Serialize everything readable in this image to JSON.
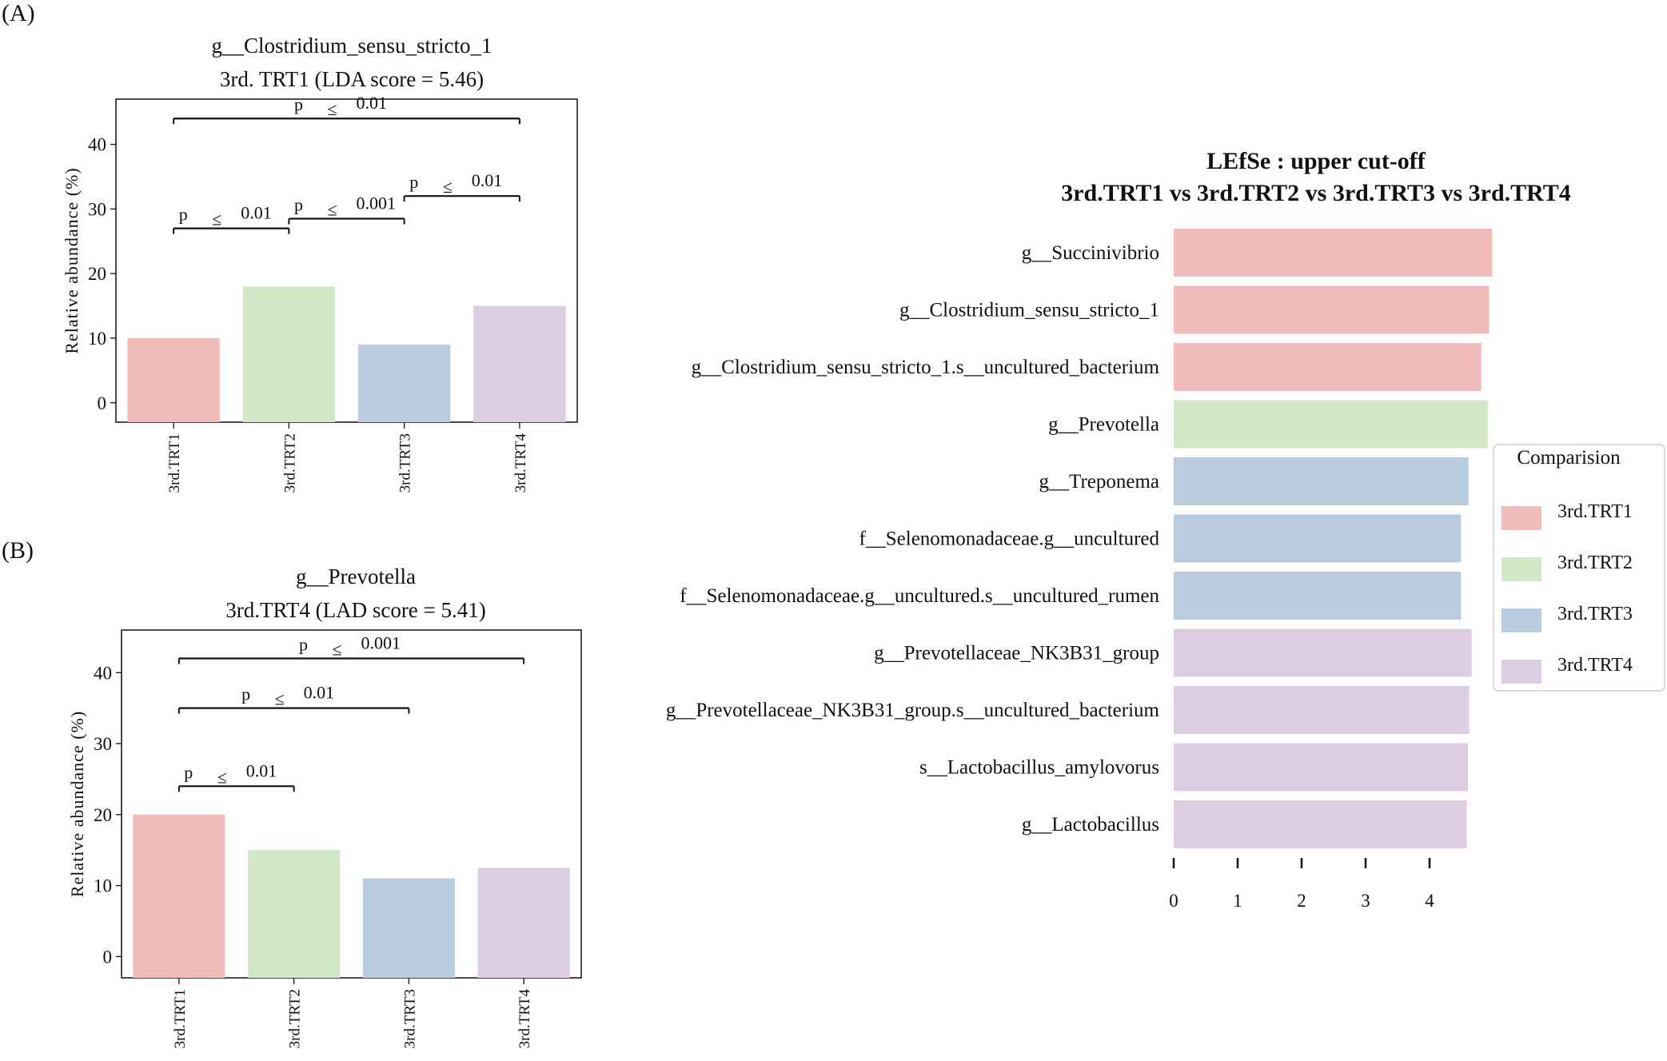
{
  "colors": {
    "TRT1": "#f2bcba",
    "TRT2": "#d0e7c8",
    "TRT3": "#b9cbdf",
    "TRT4": "#dccde2",
    "ink": "#111111"
  },
  "chart_data": [
    {
      "id": "A",
      "type": "bar",
      "panel_label": "(A)",
      "title": "g__Clostridium_sensu_stricto_1",
      "subtitle": "3rd. TRT1 (LDA score = 5.46)",
      "ylabel": "Relative  abundance  (%)",
      "xlabel": "",
      "ylim": [
        -3,
        47
      ],
      "yticks": [
        0,
        10,
        20,
        30,
        40
      ],
      "grid": false,
      "categories": [
        "3rd.TRT1",
        "3rd.TRT2",
        "3rd.TRT3",
        "3rd.TRT4"
      ],
      "values": [
        10,
        18,
        9,
        15
      ],
      "bar_colors": [
        "#f2bcba",
        "#d0e7c8",
        "#b9cbdf",
        "#dccde2"
      ],
      "significance": [
        {
          "from": 0,
          "to": 3,
          "y": 44,
          "p": "p",
          "op": "≤",
          "value": "0.01"
        },
        {
          "from": 0,
          "to": 1,
          "y": 27,
          "p": "p",
          "op": "≤",
          "value": "0.01"
        },
        {
          "from": 1,
          "to": 2,
          "y": 28.5,
          "p": "p",
          "op": "≤",
          "value": "0.001"
        },
        {
          "from": 2,
          "to": 3,
          "y": 32,
          "p": "p",
          "op": "≤",
          "value": "0.01"
        }
      ]
    },
    {
      "id": "B",
      "type": "bar",
      "panel_label": "(B)",
      "title": "g__Prevotella",
      "subtitle": "3rd.TRT4 (LAD score = 5.41)",
      "ylabel": "Relative  abundance  (%)",
      "xlabel": "",
      "ylim": [
        -3,
        46
      ],
      "yticks": [
        0,
        10,
        20,
        30,
        40
      ],
      "grid": false,
      "categories": [
        "3rd.TRT1",
        "3rd.TRT2",
        "3rd.TRT3",
        "3rd.TRT4"
      ],
      "values": [
        20,
        15,
        11,
        12.5
      ],
      "bar_colors": [
        "#f2bcba",
        "#d0e7c8",
        "#b9cbdf",
        "#dccde2"
      ],
      "significance": [
        {
          "from": 0,
          "to": 3,
          "y": 42,
          "p": "p",
          "op": "≤",
          "value": "0.001"
        },
        {
          "from": 0,
          "to": 2,
          "y": 35,
          "p": "p",
          "op": "≤",
          "value": "0.01"
        },
        {
          "from": 0,
          "to": 1,
          "y": 24,
          "p": "p",
          "op": "≤",
          "value": "0.01"
        }
      ]
    },
    {
      "id": "C",
      "type": "bar",
      "orientation": "horizontal",
      "title": "LEfSe : upper  cut-off",
      "subtitle": "3rd.TRT1  vs 3rd.TRT2  vs 3rd.TRT3  vs 3rd.TRT4",
      "xlabel": "",
      "ylabel": "",
      "xlim": [
        0,
        5
      ],
      "xticks": [
        0,
        1,
        2,
        3,
        4
      ],
      "grid": false,
      "legend": {
        "title": "Comparision",
        "position": "right",
        "entries": [
          {
            "label": "3rd.TRT1",
            "color": "#f2bcba"
          },
          {
            "label": "3rd.TRT2",
            "color": "#d0e7c8"
          },
          {
            "label": "3rd.TRT3",
            "color": "#b9cbdf"
          },
          {
            "label": "3rd.TRT4",
            "color": "#dccde2"
          }
        ]
      },
      "features": [
        {
          "name": "g__Succinivibrio",
          "value": 4.98,
          "group": "3rd.TRT1"
        },
        {
          "name": "g__Clostridium_sensu_stricto_1",
          "value": 4.93,
          "group": "3rd.TRT1"
        },
        {
          "name": "g__Clostridium_sensu_stricto_1.s__uncultured_bacterium",
          "value": 4.81,
          "group": "3rd.TRT1"
        },
        {
          "name": "g__Prevotella",
          "value": 4.91,
          "group": "3rd.TRT2"
        },
        {
          "name": "g__Treponema",
          "value": 4.61,
          "group": "3rd.TRT3"
        },
        {
          "name": "f__Selenomonadaceae.g__uncultured",
          "value": 4.49,
          "group": "3rd.TRT3"
        },
        {
          "name": "f__Selenomonadaceae.g__uncultured.s__uncultured_rumen",
          "value": 4.49,
          "group": "3rd.TRT3"
        },
        {
          "name": "g__Prevotellaceae_NK3B31_group",
          "value": 4.66,
          "group": "3rd.TRT4"
        },
        {
          "name": "g__Prevotellaceae_NK3B31_group.s__uncultured_bacterium",
          "value": 4.62,
          "group": "3rd.TRT4"
        },
        {
          "name": "s__Lactobacillus_amylovorus",
          "value": 4.6,
          "group": "3rd.TRT4"
        },
        {
          "name": "g__Lactobacillus",
          "value": 4.58,
          "group": "3rd.TRT4"
        }
      ]
    }
  ]
}
